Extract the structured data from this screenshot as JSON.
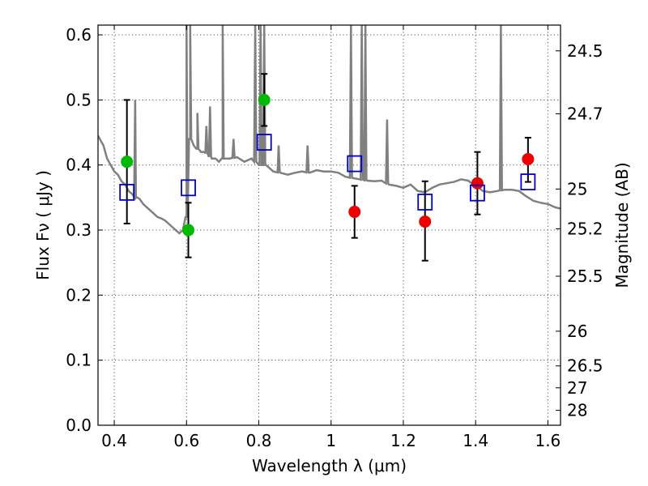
{
  "chart_data": {
    "type": "scatter",
    "title": "",
    "xlabel": "Wavelength  λ (μm)",
    "ylabel": "Flux  Fν  ( μJy )",
    "y2label": "Magnitude (AB)",
    "xlim": [
      0.355,
      1.635
    ],
    "ylim": [
      0.0,
      0.615
    ],
    "grid": true,
    "x_ticks": [
      0.4,
      0.6,
      0.8,
      1.0,
      1.2,
      1.4,
      1.6
    ],
    "x_tick_labels": [
      "0.4",
      "0.6",
      "0.8",
      "1",
      "1.2",
      "1.4",
      "1.6"
    ],
    "y_ticks": [
      0.0,
      0.1,
      0.2,
      0.3,
      0.4,
      0.5,
      0.6
    ],
    "y_tick_labels": [
      "0.0",
      "0.1",
      "0.2",
      "0.3",
      "0.4",
      "0.5",
      "0.6"
    ],
    "y2_ticks": [
      24.5,
      24.7,
      25,
      25.2,
      25.5,
      26,
      26.5,
      27,
      28
    ],
    "y2_tick_labels": [
      "24.5",
      "24.7",
      "25",
      "25.2",
      "25.5",
      "26",
      "26.5",
      "27",
      "28"
    ],
    "colors": {
      "spectrum": "#808080",
      "model": "#0000cc",
      "group1": "#00bb00",
      "group2": "#ee0000",
      "errorbar": "#000000"
    },
    "spectrum": {
      "x": [
        0.355,
        0.37,
        0.38,
        0.39,
        0.4,
        0.41,
        0.42,
        0.43,
        0.44,
        0.45,
        0.46,
        0.47,
        0.48,
        0.49,
        0.5,
        0.51,
        0.52,
        0.53,
        0.54,
        0.55,
        0.56,
        0.57,
        0.58,
        0.59,
        0.6,
        0.61,
        0.62,
        0.63,
        0.64,
        0.65,
        0.66,
        0.67,
        0.68,
        0.69,
        0.7,
        0.72,
        0.74,
        0.76,
        0.78,
        0.8,
        0.82,
        0.84,
        0.86,
        0.88,
        0.9,
        0.92,
        0.94,
        0.96,
        0.98,
        1.0,
        1.02,
        1.04,
        1.06,
        1.08,
        1.1,
        1.12,
        1.14,
        1.16,
        1.18,
        1.2,
        1.22,
        1.24,
        1.26,
        1.28,
        1.3,
        1.32,
        1.34,
        1.36,
        1.38,
        1.4,
        1.42,
        1.44,
        1.46,
        1.48,
        1.5,
        1.52,
        1.54,
        1.56,
        1.58,
        1.6,
        1.62,
        1.635
      ],
      "y": [
        0.445,
        0.43,
        0.41,
        0.4,
        0.39,
        0.385,
        0.375,
        0.37,
        0.36,
        0.355,
        0.35,
        0.348,
        0.34,
        0.335,
        0.33,
        0.325,
        0.32,
        0.318,
        0.315,
        0.31,
        0.305,
        0.3,
        0.295,
        0.3,
        0.32,
        0.44,
        0.43,
        0.425,
        0.42,
        0.42,
        0.415,
        0.41,
        0.41,
        0.405,
        0.41,
        0.41,
        0.412,
        0.405,
        0.41,
        0.4,
        0.4,
        0.39,
        0.388,
        0.385,
        0.388,
        0.39,
        0.388,
        0.392,
        0.39,
        0.39,
        0.388,
        0.382,
        0.38,
        0.378,
        0.376,
        0.375,
        0.376,
        0.37,
        0.368,
        0.365,
        0.37,
        0.36,
        0.358,
        0.365,
        0.37,
        0.372,
        0.374,
        0.378,
        0.376,
        0.368,
        0.36,
        0.358,
        0.36,
        0.362,
        0.362,
        0.36,
        0.352,
        0.345,
        0.342,
        0.34,
        0.335,
        0.333
      ],
      "lines": [
        {
          "x": 0.458,
          "peak": 0.5
        },
        {
          "x": 0.6,
          "peak": 0.7
        },
        {
          "x": 0.61,
          "peak": 0.7
        },
        {
          "x": 0.63,
          "peak": 0.48
        },
        {
          "x": 0.655,
          "peak": 0.46
        },
        {
          "x": 0.665,
          "peak": 0.49
        },
        {
          "x": 0.7,
          "peak": 0.7
        },
        {
          "x": 0.73,
          "peak": 0.44
        },
        {
          "x": 0.79,
          "peak": 0.7
        },
        {
          "x": 0.805,
          "peak": 0.7
        },
        {
          "x": 0.815,
          "peak": 0.7
        },
        {
          "x": 0.855,
          "peak": 0.43
        },
        {
          "x": 0.935,
          "peak": 0.43
        },
        {
          "x": 1.055,
          "peak": 0.7
        },
        {
          "x": 1.085,
          "peak": 0.7
        },
        {
          "x": 1.095,
          "peak": 0.7
        },
        {
          "x": 1.155,
          "peak": 0.47
        },
        {
          "x": 1.4,
          "peak": 0.37
        },
        {
          "x": 1.47,
          "peak": 0.7
        }
      ]
    },
    "series": [
      {
        "marker": "circle",
        "color": "#00bb00",
        "x": [
          0.435,
          0.605,
          0.815
        ],
        "y": [
          0.405,
          0.3,
          0.5
        ],
        "yerr_low": [
          0.095,
          0.042,
          0.04
        ],
        "yerr_high": [
          0.095,
          0.042,
          0.04
        ]
      },
      {
        "marker": "circle",
        "color": "#ee0000",
        "x": [
          1.065,
          1.26,
          1.405,
          1.545
        ],
        "y": [
          0.328,
          0.313,
          0.372,
          0.409
        ],
        "yerr_low": [
          0.04,
          0.06,
          0.048,
          0.035
        ],
        "yerr_high": [
          0.04,
          0.062,
          0.048,
          0.033
        ]
      },
      {
        "marker": "open-square",
        "color": "#0000cc",
        "x": [
          0.435,
          0.605,
          0.815,
          1.065,
          1.26,
          1.405,
          1.545
        ],
        "y": [
          0.358,
          0.365,
          0.435,
          0.402,
          0.343,
          0.357,
          0.374
        ]
      }
    ]
  }
}
